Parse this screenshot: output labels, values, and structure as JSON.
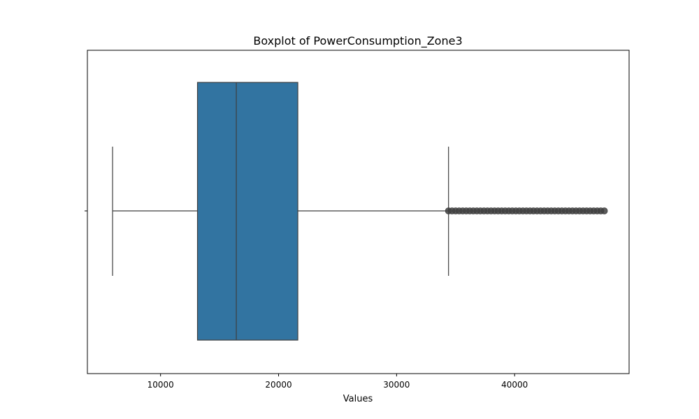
{
  "chart_data": {
    "type": "boxplot",
    "title": "Boxplot of PowerConsumption_Zone3",
    "xlabel": "Values",
    "ylabel": "",
    "xlim": [
      3800,
      49700
    ],
    "x_ticks": [
      10000,
      20000,
      30000,
      40000
    ],
    "x_tick_labels": [
      "10000",
      "20000",
      "30000",
      "40000"
    ],
    "grid": false,
    "legend": "none",
    "box": {
      "whisker_low": 5935,
      "q1": 13130,
      "median": 16420,
      "q3": 21630,
      "whisker_high": 34400
    },
    "outliers": [
      34400,
      34700,
      35000,
      35300,
      35600,
      35900,
      36200,
      36500,
      36800,
      37100,
      37400,
      37700,
      38000,
      38300,
      38600,
      38900,
      39200,
      39500,
      39800,
      40100,
      40400,
      40700,
      41000,
      41300,
      41600,
      41900,
      42200,
      42500,
      42800,
      43100,
      43400,
      43700,
      44000,
      44300,
      44600,
      44900,
      45200,
      45500,
      45800,
      46100,
      46400,
      46700,
      47000,
      47300,
      47600
    ],
    "colors": {
      "box_fill": "#3274a1",
      "line": "#3f3f3f",
      "outlier": "#3f3f3f"
    }
  }
}
